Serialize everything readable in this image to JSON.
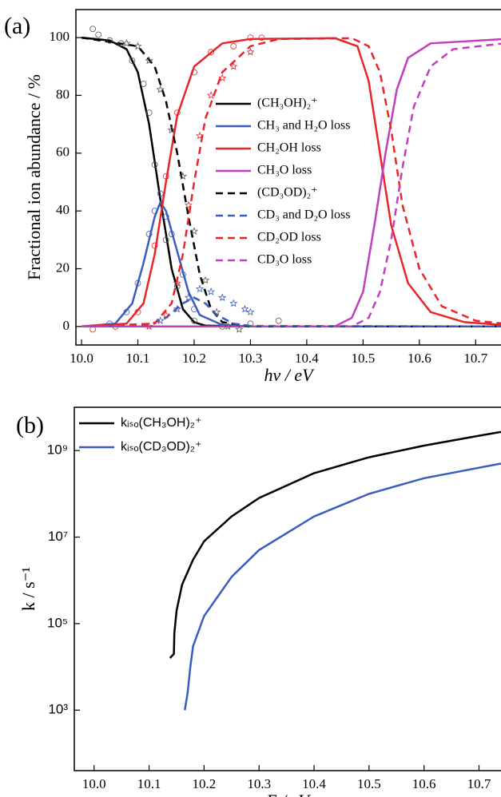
{
  "chart_data": [
    {
      "type": "line",
      "panel_label": "(a)",
      "ylabel": "Fractional ion abundance / %",
      "xlabel": "hν / eV",
      "xlim": [
        9.99,
        10.745
      ],
      "ylim": [
        -6.4,
        109.7
      ],
      "xticks": [
        {
          "value": 10,
          "label": "10.0"
        },
        10.1,
        10.2,
        10.3,
        10.4,
        10.5,
        10.6,
        10.7
      ],
      "yticks": [
        0,
        20,
        40,
        60,
        80,
        100
      ],
      "legend": "center",
      "series": [
        {
          "name": "(CH₃OH)₂⁺",
          "color": "#000000",
          "dash": false,
          "x": [
            10.0,
            10.05,
            10.08,
            10.1,
            10.12,
            10.14,
            10.16,
            10.18,
            10.2,
            10.22,
            10.3,
            10.75
          ],
          "values": [
            100,
            99,
            96,
            88,
            70,
            44,
            20,
            6,
            1.5,
            0.3,
            0,
            0
          ]
        },
        {
          "name": "CH₃ and H₂O loss",
          "color": "#3a5bbf",
          "dash": false,
          "x": [
            10.0,
            10.06,
            10.09,
            10.11,
            10.13,
            10.14,
            10.15,
            10.17,
            10.19,
            10.21,
            10.25,
            10.3,
            10.75
          ],
          "values": [
            0,
            1,
            8,
            22,
            38,
            43,
            40,
            26,
            12,
            4,
            0.5,
            0,
            0
          ]
        },
        {
          "name": "CH₂OH loss",
          "color": "#e8262a",
          "dash": false,
          "x": [
            10.0,
            10.08,
            10.11,
            10.13,
            10.15,
            10.17,
            10.2,
            10.25,
            10.3,
            10.45,
            10.49,
            10.51,
            10.53,
            10.55,
            10.58,
            10.62,
            10.68,
            10.75
          ],
          "values": [
            0,
            1,
            8,
            25,
            50,
            73,
            90,
            98,
            99.5,
            99.8,
            97,
            85,
            60,
            35,
            15,
            5,
            1.5,
            0.5
          ]
        },
        {
          "name": "CH₃O loss",
          "color": "#c13ebf",
          "dash": false,
          "x": [
            10.0,
            10.45,
            10.48,
            10.5,
            10.52,
            10.54,
            10.56,
            10.58,
            10.62,
            10.75
          ],
          "values": [
            0,
            0,
            3,
            12,
            35,
            60,
            82,
            93,
            98,
            99.5
          ]
        },
        {
          "name": "(CD₃OD)₂⁺",
          "color": "#000000",
          "dash": true,
          "x": [
            10.0,
            10.1,
            10.13,
            10.15,
            10.17,
            10.19,
            10.21,
            10.23,
            10.25,
            10.3,
            10.75
          ],
          "values": [
            100,
            97,
            90,
            78,
            60,
            38,
            18,
            6,
            1.5,
            0,
            0
          ]
        },
        {
          "name": "CD₃ and D₂O loss",
          "color": "#3a5bbf",
          "dash": true,
          "x": [
            10.0,
            10.12,
            10.15,
            10.18,
            10.2,
            10.22,
            10.24,
            10.27,
            10.3,
            10.75
          ],
          "values": [
            0,
            0.5,
            3,
            8,
            10,
            8,
            4,
            1,
            0.2,
            0
          ]
        },
        {
          "name": "CD₂OD loss",
          "color": "#e8262a",
          "dash": true,
          "x": [
            10.0,
            10.13,
            10.16,
            10.18,
            10.2,
            10.22,
            10.25,
            10.3,
            10.35,
            10.48,
            10.51,
            10.53,
            10.55,
            10.57,
            10.6,
            10.64,
            10.7,
            10.75
          ],
          "values": [
            0,
            1,
            8,
            25,
            50,
            72,
            88,
            97,
            99.5,
            99.8,
            97,
            88,
            68,
            42,
            20,
            7,
            2,
            1
          ]
        },
        {
          "name": "CD₃O loss",
          "color": "#c13ebf",
          "dash": true,
          "x": [
            10.0,
            10.48,
            10.51,
            10.53,
            10.55,
            10.57,
            10.59,
            10.62,
            10.66,
            10.75
          ],
          "values": [
            0,
            0,
            3,
            12,
            30,
            55,
            76,
            90,
            96,
            98
          ]
        }
      ],
      "points": [
        {
          "marker": "circle",
          "color": "#555555",
          "x": [
            10.02,
            10.03,
            10.05,
            10.07,
            10.09,
            10.11,
            10.12,
            10.13,
            10.15,
            10.17,
            10.2,
            10.25,
            10.3,
            10.35
          ],
          "values": [
            103,
            101,
            99,
            98,
            92,
            84,
            74,
            56,
            30,
            14,
            2,
            0,
            1,
            2
          ]
        },
        {
          "marker": "star",
          "color": "#555555",
          "x": [
            10.08,
            10.1,
            10.12,
            10.14,
            10.16,
            10.18,
            10.2,
            10.22,
            10.24,
            10.26,
            10.28
          ],
          "values": [
            98,
            97,
            92,
            82,
            68,
            52,
            33,
            16,
            5,
            0,
            -1
          ]
        },
        {
          "marker": "circle",
          "color": "#3a5bbf",
          "x": [
            10.05,
            10.08,
            10.1,
            10.12,
            10.13,
            10.14,
            10.15,
            10.16,
            10.18,
            10.2
          ],
          "values": [
            1,
            5,
            15,
            32,
            40,
            46,
            38,
            32,
            18,
            6
          ]
        },
        {
          "marker": "star",
          "color": "#3a5bbf",
          "x": [
            10.14,
            10.17,
            10.19,
            10.21,
            10.23,
            10.25,
            10.27,
            10.29,
            10.3
          ],
          "values": [
            2,
            6,
            10,
            13,
            12,
            10,
            8,
            6,
            5
          ]
        },
        {
          "marker": "circle",
          "color": "#e8262a",
          "x": [
            10.02,
            10.06,
            10.1,
            10.13,
            10.15,
            10.17,
            10.2,
            10.23,
            10.27,
            10.3,
            10.32
          ],
          "values": [
            -1,
            0,
            5,
            28,
            52,
            74,
            88,
            95,
            97,
            100,
            100
          ]
        },
        {
          "marker": "star",
          "color": "#e8262a",
          "x": [
            10.12,
            10.15,
            10.17,
            10.19,
            10.21,
            10.23,
            10.25,
            10.27,
            10.3
          ],
          "values": [
            0,
            4,
            15,
            42,
            66,
            80,
            86,
            90,
            95
          ]
        }
      ]
    },
    {
      "type": "line",
      "panel_label": "(b)",
      "ylabel": "k / s⁻¹",
      "xlabel": "E / eV",
      "ylog": true,
      "xlim": [
        9.964,
        10.74
      ],
      "ylim": [
        40,
        10000000000
      ],
      "xticks": [
        {
          "value": 10,
          "label": "10.0"
        },
        10.1,
        10.2,
        10.3,
        10.4,
        10.5,
        10.6,
        10.7
      ],
      "yticks": [
        {
          "value": 1000,
          "label": "10³"
        },
        {
          "value": 100000,
          "label": "10⁵"
        },
        {
          "value": 10000000,
          "label": "10⁷"
        },
        {
          "value": 1000000000,
          "label": "10⁹"
        }
      ],
      "legend": "upper left",
      "series": [
        {
          "name": "kᵢₛₒ(CH₃OH)₂⁺",
          "color": "#000000",
          "dash": false,
          "x": [
            10.138,
            10.145,
            10.146,
            10.15,
            10.16,
            10.18,
            10.2,
            10.25,
            10.3,
            10.4,
            10.5,
            10.6,
            10.7,
            10.74
          ],
          "values": [
            16000,
            20000,
            60000,
            200000,
            800000,
            3000000,
            8000000,
            30000000,
            80000000,
            300000000,
            700000000,
            1300000000,
            2200000000,
            2700000000
          ]
        },
        {
          "name": "kᵢₛₒ(CD₃OD)₂⁺",
          "color": "#3a5bbf",
          "dash": false,
          "x": [
            10.165,
            10.17,
            10.175,
            10.18,
            10.2,
            10.25,
            10.3,
            10.4,
            10.5,
            10.6,
            10.7,
            10.74
          ],
          "values": [
            1000,
            2500,
            10000,
            30000,
            150000,
            1200000,
            5000000,
            30000000,
            100000000,
            230000000,
            400000000,
            500000000
          ]
        }
      ]
    }
  ]
}
